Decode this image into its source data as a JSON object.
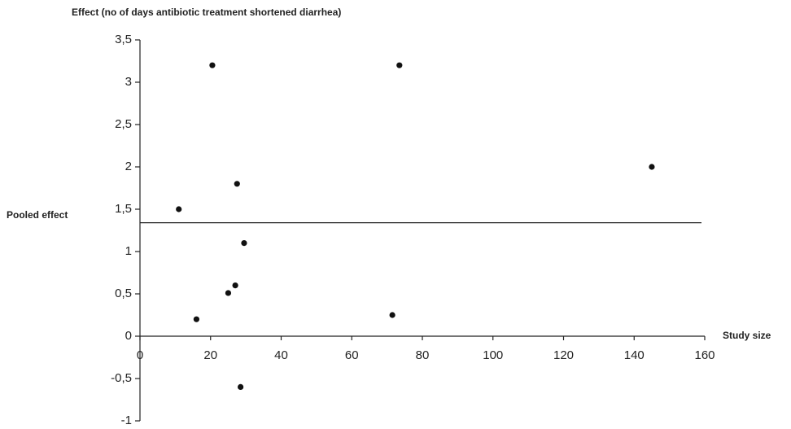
{
  "chart_data": {
    "type": "scatter",
    "title": "Effect (no of days antibiotic treatment shortened diarrhea)",
    "x_label": "Study size",
    "reference_line": {
      "label": "Pooled effect",
      "value": 1.34
    },
    "series": [
      {
        "color": "#111111",
        "x": [
          20.5,
          73.5,
          145,
          27.5,
          11,
          29.5,
          27,
          25,
          16,
          71.5,
          28.5
        ],
        "values": [
          3.2,
          3.2,
          2.0,
          1.8,
          1.5,
          1.1,
          0.6,
          0.51,
          0.2,
          0.25,
          -0.6
        ]
      }
    ],
    "xlim": [
      0,
      160
    ],
    "xticks": [
      0,
      20,
      40,
      60,
      80,
      100,
      120,
      140,
      160
    ],
    "ylim": [
      -1,
      3.5
    ],
    "yticks": [
      {
        "value": -1,
        "label": "-1"
      },
      {
        "value": -0.5,
        "label": "-0,5"
      },
      0,
      {
        "value": 0.5,
        "label": "0,5"
      },
      1,
      {
        "value": 1.5,
        "label": "1,5"
      },
      2,
      {
        "value": 2.5,
        "label": "2,5"
      },
      3,
      {
        "value": 3.5,
        "label": "3,5"
      }
    ],
    "grid": false
  }
}
